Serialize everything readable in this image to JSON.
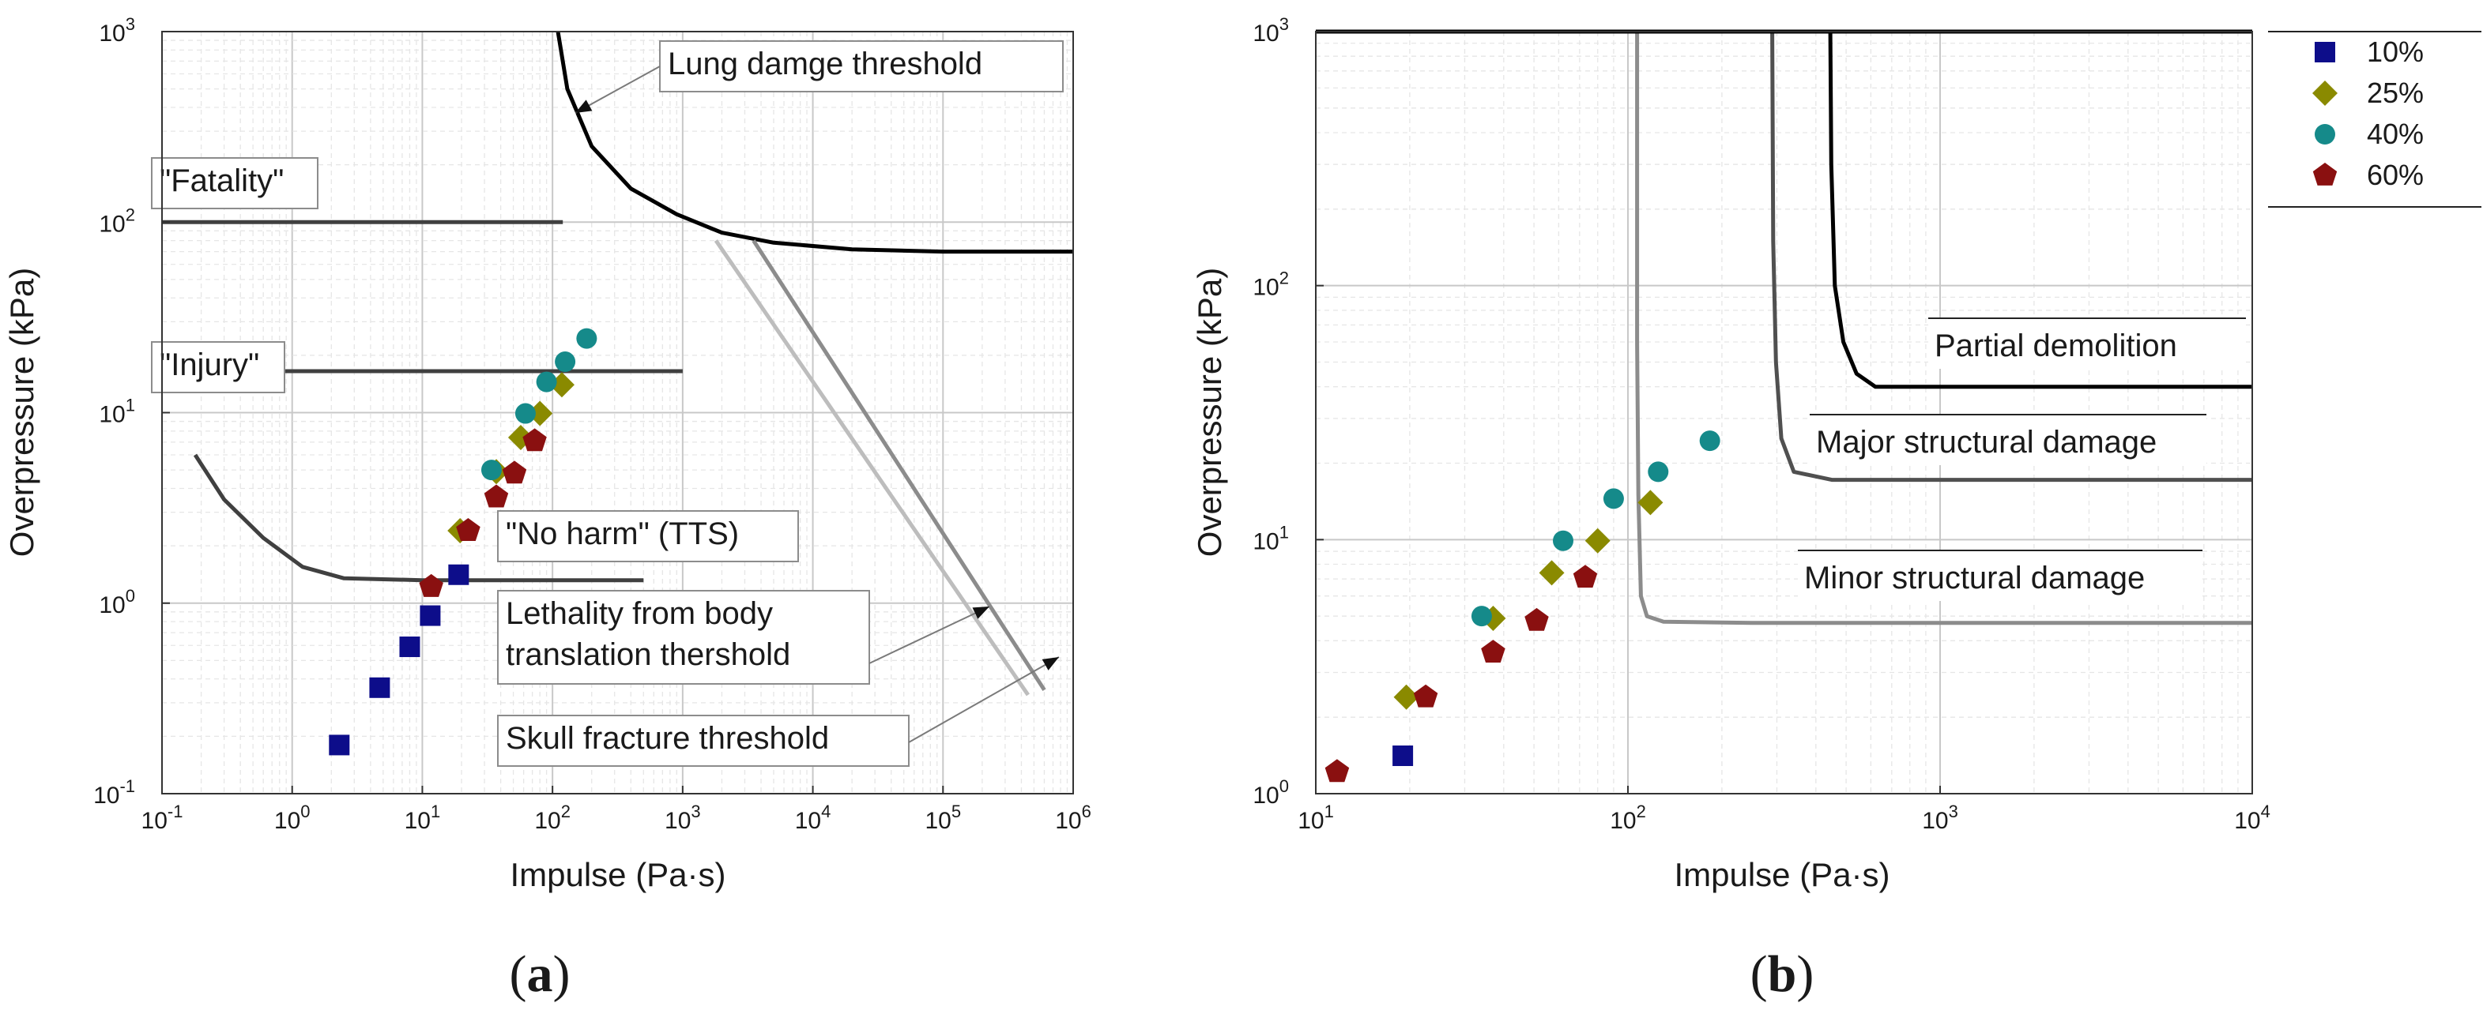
{
  "chart_data": [
    {
      "type": "scatter",
      "panel_label": "a",
      "xscale": "log",
      "yscale": "log",
      "xlim": [
        0.1,
        1000000
      ],
      "ylim": [
        0.1,
        1000
      ],
      "xlabel": "Impulse (Pa·s)",
      "ylabel": "Overpressure (kPa)",
      "x_ticks": [
        {
          "base": "10",
          "exp": "-1"
        },
        {
          "base": "10",
          "exp": "0"
        },
        {
          "base": "10",
          "exp": "1"
        },
        {
          "base": "10",
          "exp": "2"
        },
        {
          "base": "10",
          "exp": "3"
        },
        {
          "base": "10",
          "exp": "4"
        },
        {
          "base": "10",
          "exp": "5"
        },
        {
          "base": "10",
          "exp": "6"
        }
      ],
      "y_ticks": [
        {
          "base": "10",
          "exp": "-1"
        },
        {
          "base": "10",
          "exp": "0"
        },
        {
          "base": "10",
          "exp": "1"
        },
        {
          "base": "10",
          "exp": "2"
        },
        {
          "base": "10",
          "exp": "3"
        }
      ],
      "grid": true,
      "series": [
        {
          "name": "10%",
          "color": "#0d0d8a",
          "marker": "square",
          "points": [
            [
              2.3,
              0.18
            ],
            [
              4.7,
              0.36
            ],
            [
              8.0,
              0.59
            ],
            [
              11.5,
              0.86
            ],
            [
              19.0,
              1.41
            ]
          ]
        },
        {
          "name": "25%",
          "color": "#8a8a00",
          "marker": "diamond",
          "points": [
            [
              19.5,
              2.4
            ],
            [
              37.0,
              4.9
            ],
            [
              57.0,
              7.4
            ],
            [
              80.0,
              9.9
            ],
            [
              118.0,
              14.0
            ]
          ]
        },
        {
          "name": "40%",
          "color": "#158a8a",
          "marker": "circle",
          "points": [
            [
              34.0,
              5.0
            ],
            [
              62.0,
              9.9
            ],
            [
              90.0,
              14.5
            ],
            [
              125.0,
              18.5
            ],
            [
              183.0,
              24.5
            ]
          ]
        },
        {
          "name": "60%",
          "color": "#8a1010",
          "marker": "pentagon",
          "points": [
            [
              11.7,
              1.22
            ],
            [
              22.5,
              2.4
            ],
            [
              37.0,
              3.6
            ],
            [
              51.0,
              4.8
            ],
            [
              73.0,
              7.1
            ]
          ]
        }
      ],
      "curves": [
        {
          "name": "lung",
          "color": "#000000",
          "points": [
            [
              110,
              1000
            ],
            [
              130,
              500
            ],
            [
              200,
              250
            ],
            [
              400,
              150
            ],
            [
              900,
              110
            ],
            [
              2000,
              88
            ],
            [
              5000,
              78
            ],
            [
              20000,
              72
            ],
            [
              100000,
              70
            ],
            [
              1000000,
              70
            ]
          ]
        },
        {
          "name": "fatality",
          "color": "#404040",
          "points": [
            [
              0.1,
              100
            ],
            [
              120,
              100
            ]
          ]
        },
        {
          "name": "injury",
          "color": "#404040",
          "points": [
            [
              0.1,
              16.5
            ],
            [
              1000,
              16.5
            ]
          ]
        },
        {
          "name": "tts",
          "color": "#404040",
          "points": [
            [
              0.18,
              6
            ],
            [
              0.3,
              3.5
            ],
            [
              0.6,
              2.2
            ],
            [
              1.2,
              1.55
            ],
            [
              2.5,
              1.35
            ],
            [
              10,
              1.32
            ],
            [
              100,
              1.32
            ],
            [
              500,
              1.32
            ]
          ]
        },
        {
          "name": "lethality",
          "color": "#8c8c8c",
          "points": [
            [
              3500,
              80
            ],
            [
              600000,
              0.35
            ]
          ]
        },
        {
          "name": "skull",
          "color": "#bdbdbd",
          "points": [
            [
              1800,
              80
            ],
            [
              450000,
              0.33
            ]
          ]
        }
      ],
      "annotations": {
        "lung": "Lung damge threshold",
        "fatality": "\"Fatality\"",
        "injury": "\"Injury\"",
        "no_harm": "\"No harm\" (TTS)",
        "lethality_line1": "Lethality from body",
        "lethality_line2": "translation thershold",
        "skull": "Skull fracture threshold"
      }
    },
    {
      "type": "scatter",
      "panel_label": "b",
      "xscale": "log",
      "yscale": "log",
      "xlim": [
        10,
        10000
      ],
      "ylim": [
        1,
        1000
      ],
      "xlabel": "Impulse (Pa·s)",
      "ylabel": "Overpressure (kPa)",
      "x_ticks": [
        {
          "base": "10",
          "exp": "1"
        },
        {
          "base": "10",
          "exp": "2"
        },
        {
          "base": "10",
          "exp": "3"
        },
        {
          "base": "10",
          "exp": "4"
        }
      ],
      "y_ticks": [
        {
          "base": "10",
          "exp": "0"
        },
        {
          "base": "10",
          "exp": "1"
        },
        {
          "base": "10",
          "exp": "2"
        },
        {
          "base": "10",
          "exp": "3"
        }
      ],
      "grid": true,
      "series": [
        {
          "name": "10%",
          "color": "#0d0d8a",
          "marker": "square",
          "points": [
            [
              19.0,
              1.41
            ]
          ]
        },
        {
          "name": "25%",
          "color": "#8a8a00",
          "marker": "diamond",
          "points": [
            [
              19.5,
              2.4
            ],
            [
              37.0,
              4.9
            ],
            [
              57.0,
              7.4
            ],
            [
              80.0,
              9.9
            ],
            [
              118.0,
              14.0
            ]
          ]
        },
        {
          "name": "40%",
          "color": "#158a8a",
          "marker": "circle",
          "points": [
            [
              34.0,
              5.0
            ],
            [
              62.0,
              9.9
            ],
            [
              90.0,
              14.5
            ],
            [
              125.0,
              18.5
            ],
            [
              183.0,
              24.5
            ]
          ]
        },
        {
          "name": "60%",
          "color": "#8a1010",
          "marker": "pentagon",
          "points": [
            [
              11.7,
              1.22
            ],
            [
              22.5,
              2.4
            ],
            [
              37.0,
              3.6
            ],
            [
              51.0,
              4.8
            ],
            [
              73.0,
              7.1
            ]
          ]
        }
      ],
      "curves": [
        {
          "name": "minor",
          "color": "#8c8c8c",
          "points": [
            [
              107,
              1000
            ],
            [
              107,
              60
            ],
            [
              108,
              15
            ],
            [
              110,
              6
            ],
            [
              115,
              5.0
            ],
            [
              130,
              4.75
            ],
            [
              250,
              4.7
            ],
            [
              10000,
              4.7
            ]
          ]
        },
        {
          "name": "major",
          "color": "#505050",
          "points": [
            [
              290,
              1000
            ],
            [
              292,
              150
            ],
            [
              298,
              50
            ],
            [
              310,
              25
            ],
            [
              340,
              18.5
            ],
            [
              450,
              17.2
            ],
            [
              1000,
              17.2
            ],
            [
              10000,
              17.2
            ]
          ]
        },
        {
          "name": "partial",
          "color": "#000000",
          "points": [
            [
              445,
              1000
            ],
            [
              448,
              300
            ],
            [
              460,
              100
            ],
            [
              490,
              60
            ],
            [
              540,
              45
            ],
            [
              620,
              40
            ],
            [
              1200,
              40
            ],
            [
              10000,
              40
            ]
          ]
        },
        {
          "name": "top",
          "color": "#000000",
          "points": [
            [
              10,
              1000
            ],
            [
              10000,
              1000
            ]
          ]
        }
      ],
      "annotations": {
        "partial": "Partial demolition",
        "major": "Major structural damage",
        "minor": "Minor structural damage"
      }
    }
  ],
  "legend": [
    {
      "label": "10%",
      "color": "#0d0d8a",
      "marker": "square"
    },
    {
      "label": "25%",
      "color": "#8a8a00",
      "marker": "diamond"
    },
    {
      "label": "40%",
      "color": "#158a8a",
      "marker": "circle"
    },
    {
      "label": "60%",
      "color": "#8a1010",
      "marker": "pentagon"
    }
  ]
}
